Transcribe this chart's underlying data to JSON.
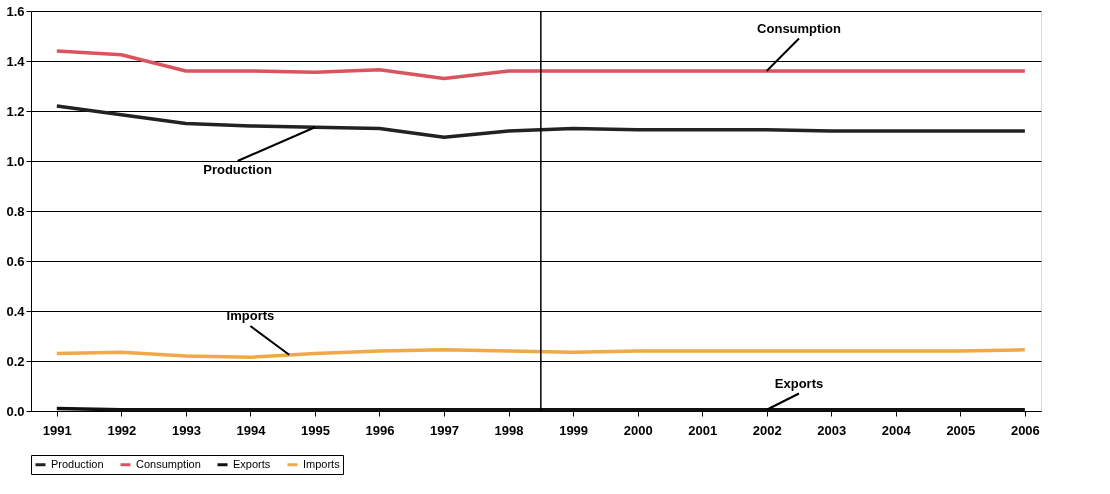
{
  "chart_data": {
    "type": "line",
    "x": [
      1991,
      1992,
      1993,
      1994,
      1995,
      1996,
      1997,
      1998,
      1999,
      2000,
      2001,
      2002,
      2003,
      2004,
      2005,
      2006
    ],
    "series": [
      {
        "name": "Production",
        "color": "#222222",
        "values": [
          1.22,
          1.185,
          1.15,
          1.14,
          1.135,
          1.13,
          1.095,
          1.12,
          1.13,
          1.125,
          1.125,
          1.125,
          1.12,
          1.12,
          1.12,
          1.12
        ]
      },
      {
        "name": "Consumption",
        "color": "#d9545e",
        "values": [
          1.44,
          1.425,
          1.36,
          1.36,
          1.355,
          1.365,
          1.33,
          1.36,
          1.36,
          1.36,
          1.36,
          1.36,
          1.36,
          1.36,
          1.36,
          1.36
        ]
      },
      {
        "name": "Exports",
        "color": "#111111",
        "values": [
          0.01,
          0.005,
          0.005,
          0.005,
          0.005,
          0.005,
          0.005,
          0.005,
          0.005,
          0.005,
          0.005,
          0.005,
          0.005,
          0.005,
          0.005,
          0.005
        ]
      },
      {
        "name": "Imports",
        "color": "#f0a848",
        "values": [
          0.23,
          0.235,
          0.22,
          0.215,
          0.23,
          0.24,
          0.245,
          0.24,
          0.235,
          0.24,
          0.24,
          0.24,
          0.24,
          0.24,
          0.24,
          0.245
        ]
      }
    ],
    "xlim": [
      1990.6,
      2006.25
    ],
    "xticks": [
      1991,
      1992,
      1993,
      1994,
      1995,
      1996,
      1997,
      1998,
      1999,
      2000,
      2001,
      2002,
      2003,
      2004,
      2005,
      2006
    ],
    "ylim": [
      0,
      1.6
    ],
    "yticks": [
      {
        "value": 0,
        "label": "0.0"
      },
      {
        "value": 0.2,
        "label": "0.2"
      },
      {
        "value": 0.4,
        "label": "0.4"
      },
      {
        "value": 0.6,
        "label": "0.6"
      },
      {
        "value": 0.8,
        "label": "0.8"
      },
      {
        "value": 1,
        "label": "1.0"
      },
      {
        "value": 1.2,
        "label": "1.2"
      },
      {
        "value": 1.4,
        "label": "1.4"
      },
      {
        "value": 1.6,
        "label": "1.6"
      }
    ],
    "ref_lines": [
      {
        "axis": "x",
        "value": 1998.5,
        "color": "#000000"
      }
    ],
    "annotations": [
      {
        "text": "Production",
        "x": 1995,
        "y": 1.135
      },
      {
        "text": "Consumption",
        "x": 2002,
        "y": 1.36
      },
      {
        "text": "Imports",
        "x": 1994.6,
        "y": 0.225
      },
      {
        "text": "Exports",
        "x": 2002,
        "y": 0.005
      }
    ],
    "grid": "y",
    "legend": "bottom",
    "marker": "none",
    "line_style": "solid"
  }
}
